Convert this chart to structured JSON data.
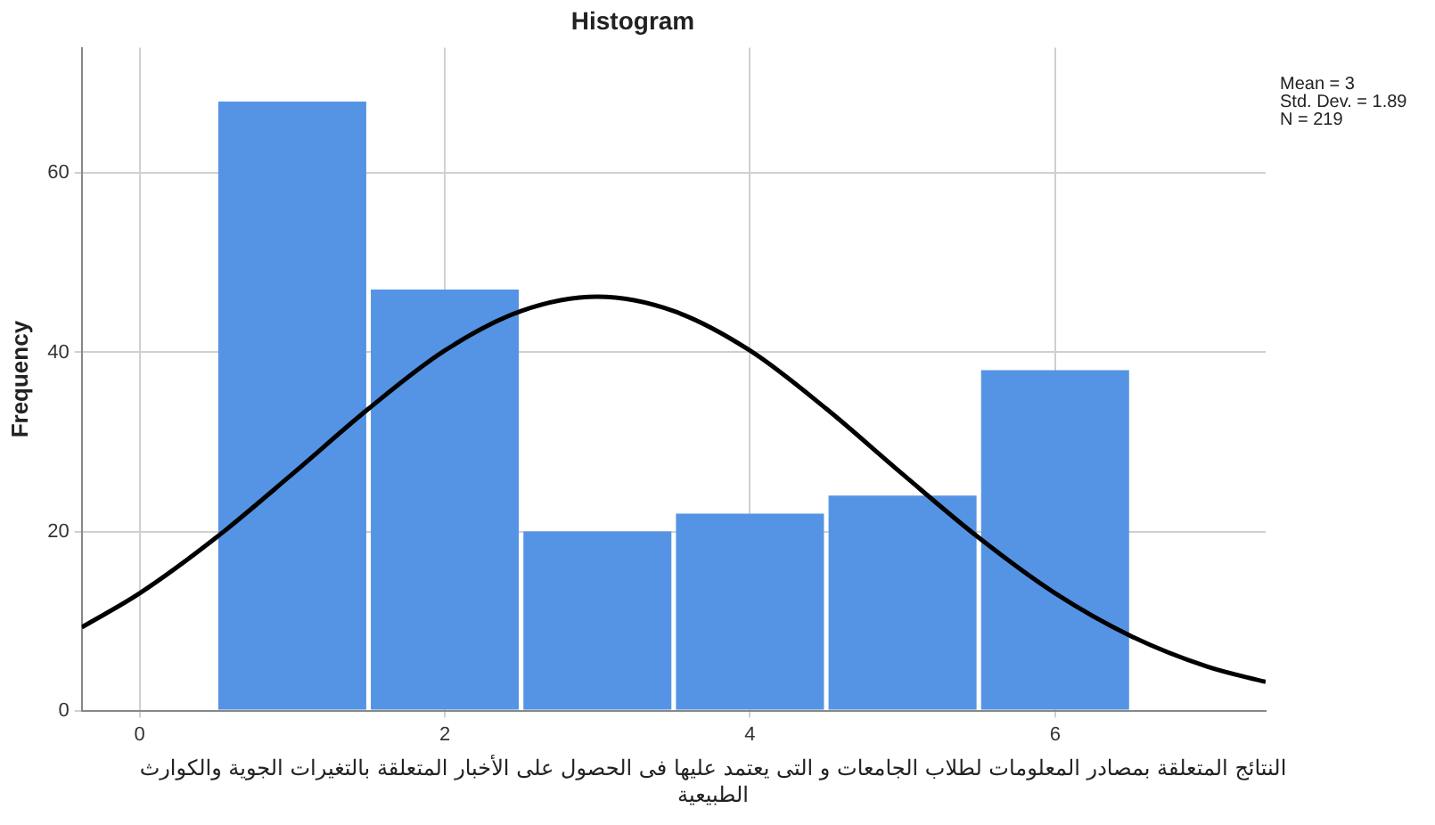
{
  "chart_data": {
    "type": "histogram",
    "title": "Histogram",
    "ylabel": "Frequency",
    "xlabel": "النتائج المتعلقة  بمصادر  المعلومات لطلاب الجامعات  و التى يعتمد عليها فى الحصول على الأخبار المتعلقة بالتغيرات الجوية والكوارث الطبيعية",
    "bins": [
      0.5,
      1.5,
      2.5,
      3.5,
      4.5,
      5.5,
      6.5
    ],
    "series": [
      {
        "color": "#5594e4",
        "values": [
          68,
          47,
          20,
          22,
          24,
          38
        ]
      },
      {
        "type": "line",
        "color": "#000000",
        "x": [
          -0.38,
          0,
          0.5,
          1,
          1.5,
          2,
          2.5,
          3,
          3.5,
          4,
          4.5,
          5,
          5.5,
          6,
          6.5,
          7,
          7.38
        ],
        "values": [
          9.3,
          13.1,
          19.3,
          26.4,
          33.7,
          40.2,
          44.6,
          46.2,
          44.6,
          40.2,
          33.7,
          26.4,
          19.3,
          13.1,
          8.3,
          4.9,
          3.2
        ]
      }
    ],
    "xlim": [
      -0.38,
      7.38
    ],
    "ylim": [
      0,
      74
    ],
    "xticks": [
      0,
      2,
      4,
      6
    ],
    "yticks": [
      0,
      20,
      40,
      60
    ],
    "grid": true,
    "legend": false,
    "marker": "none",
    "line_style": "solid",
    "annotations": [
      "Mean = 3",
      "Std. Dev. = 1.89",
      "N = 219"
    ]
  }
}
